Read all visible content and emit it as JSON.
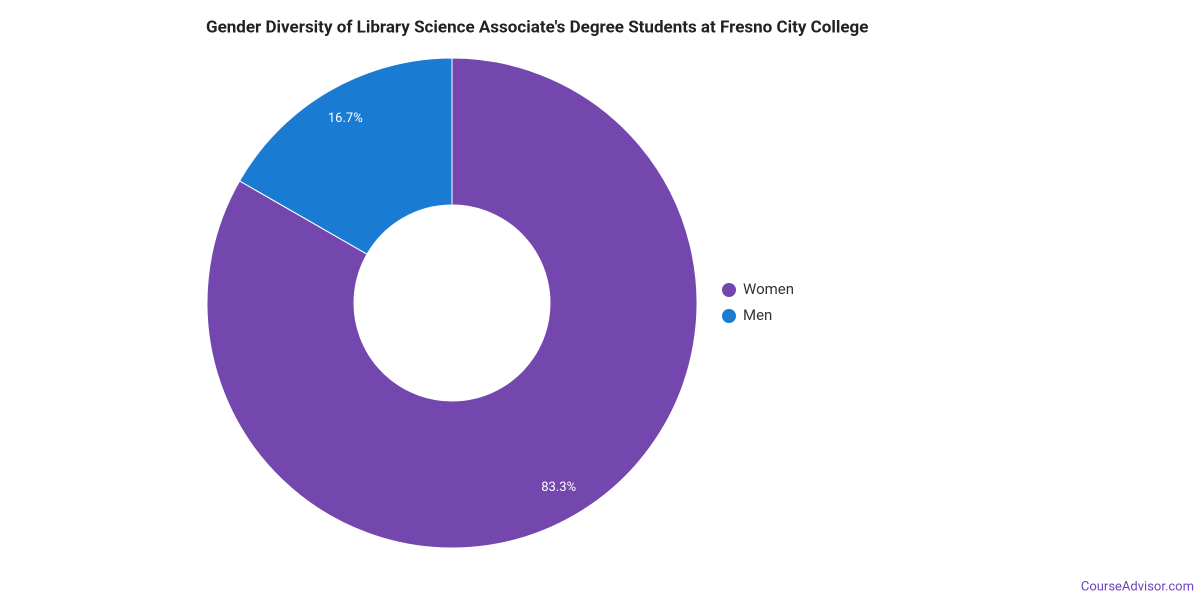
{
  "chart_data": {
    "type": "donut",
    "title": "Gender Diversity of Library Science Associate's Degree Students at Fresno City College",
    "categories": [
      "Women",
      "Men"
    ],
    "values": [
      83.3,
      16.7
    ],
    "value_labels": [
      "83.3%",
      "16.7%"
    ],
    "colors": [
      "#7447ae",
      "#1a7bd3"
    ],
    "legend": "right"
  },
  "footer": {
    "text": "CourseAdvisor.com"
  }
}
